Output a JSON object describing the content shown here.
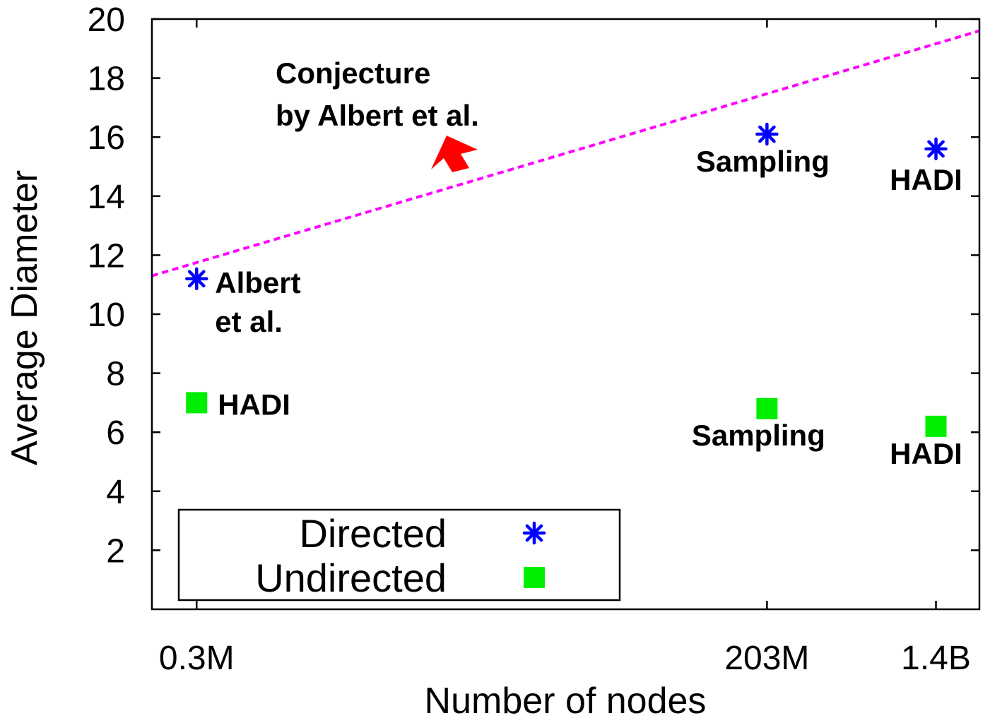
{
  "chart_data": {
    "type": "scatter",
    "title": "",
    "xlabel": "Number of nodes",
    "ylabel": "Average Diameter",
    "ylim": [
      0,
      20
    ],
    "y_ticks": [
      2,
      4,
      6,
      8,
      10,
      12,
      14,
      16,
      18,
      20
    ],
    "x_log_scale": true,
    "x_ticks": [
      {
        "value": 300000,
        "label": "0.3M"
      },
      {
        "value": 203000000,
        "label": "203M"
      },
      {
        "value": 1400000000,
        "label": "1.4B"
      }
    ],
    "xlim": [
      180000,
      2300000000
    ],
    "grid": false,
    "legend_position": "bottom-left",
    "series": [
      {
        "name": "Directed",
        "marker": "asterisk",
        "color": "#0000ff",
        "points": [
          {
            "x": 300000,
            "y": 11.2,
            "label": "Albert\net al."
          },
          {
            "x": 203000000,
            "y": 16.1,
            "label": "Sampling"
          },
          {
            "x": 1400000000,
            "y": 15.6,
            "label": "HADI"
          }
        ]
      },
      {
        "name": "Undirected",
        "marker": "square",
        "color": "#00ee00",
        "points": [
          {
            "x": 300000,
            "y": 7.0,
            "label": "HADI"
          },
          {
            "x": 203000000,
            "y": 6.8,
            "label": "Sampling"
          },
          {
            "x": 1400000000,
            "y": 6.2,
            "label": "HADI"
          }
        ]
      }
    ],
    "conjecture_line": {
      "color": "#ff00ff",
      "style": "dashed",
      "from": {
        "x": 180000,
        "y": 11.3
      },
      "to": {
        "x": 2300000000,
        "y": 19.6
      }
    },
    "annotation": {
      "text": "Conjecture\nby Albert et al.",
      "arrow_color": "#ff0000"
    }
  }
}
